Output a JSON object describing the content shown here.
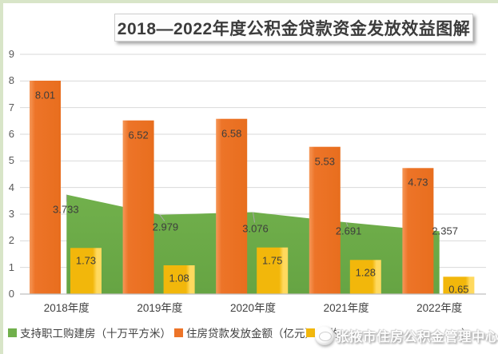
{
  "title": {
    "text": "2018—2022年度公积金贷款资金发放效益图解"
  },
  "watermark": {
    "text": "张掖市住房公积金管理中心）",
    "logo": "round-emblem-logo"
  },
  "colors": {
    "frame_border": "#D8E5C8",
    "orange": "#ED7428",
    "orange_light": "#F59758",
    "orange_dark": "#E86E1E",
    "yellow": "#F2B70B",
    "yellow_light": "#FFD95E",
    "green": "#71B04C",
    "green_dark": "#66A443",
    "gridline": "#D9D9D9",
    "axis_line": "#BFBFBF",
    "tick_label": "#595959",
    "data_label": "#3D3D3D"
  },
  "chart_data": {
    "type": "combo (area + bar)",
    "title": "2018—2022年度公积金贷款资金发放效益图解",
    "categories": [
      "2018年度",
      "2019年度",
      "2020年度",
      "2021年度",
      "2022年度"
    ],
    "series": [
      {
        "name": "支持职工购建房（十万平方米）",
        "type": "area",
        "color_key": "green",
        "values": [
          3.733,
          2.979,
          3.076,
          2.691,
          2.357
        ],
        "value_labels": [
          "3.733",
          "2.979",
          "3.076",
          "2.691",
          "2.357"
        ]
      },
      {
        "name": "住房贷款发放金额（亿元）",
        "type": "bar",
        "color_key": "orange",
        "values": [
          8.01,
          6.52,
          6.58,
          5.53,
          4.73
        ],
        "value_labels": [
          "8.01",
          "6.52",
          "6.58",
          "5.53",
          "4.73"
        ]
      },
      {
        "name": "节约…）",
        "type": "bar",
        "color_key": "yellow",
        "values": [
          1.73,
          1.08,
          1.75,
          1.28,
          0.65
        ],
        "value_labels": [
          "1.73",
          "1.08",
          "1.75",
          "1.28",
          "0.65"
        ],
        "label_note": "legend label partially obscured by watermark"
      }
    ],
    "ylim": [
      0,
      9
    ],
    "yticks": [
      "0",
      "1",
      "2",
      "3",
      "4",
      "5",
      "6",
      "7",
      "8",
      "9"
    ],
    "grid": true,
    "legend_position": "bottom"
  },
  "legend": {
    "items": [
      {
        "label": "支持职工购建房（十万平方米）",
        "color_key": "green"
      },
      {
        "label": "住房贷款发放金额（亿元）",
        "color_key": "orange"
      },
      {
        "visible_prefix": "节约",
        "visible_suffix": "）",
        "color_key": "yellow"
      }
    ]
  }
}
